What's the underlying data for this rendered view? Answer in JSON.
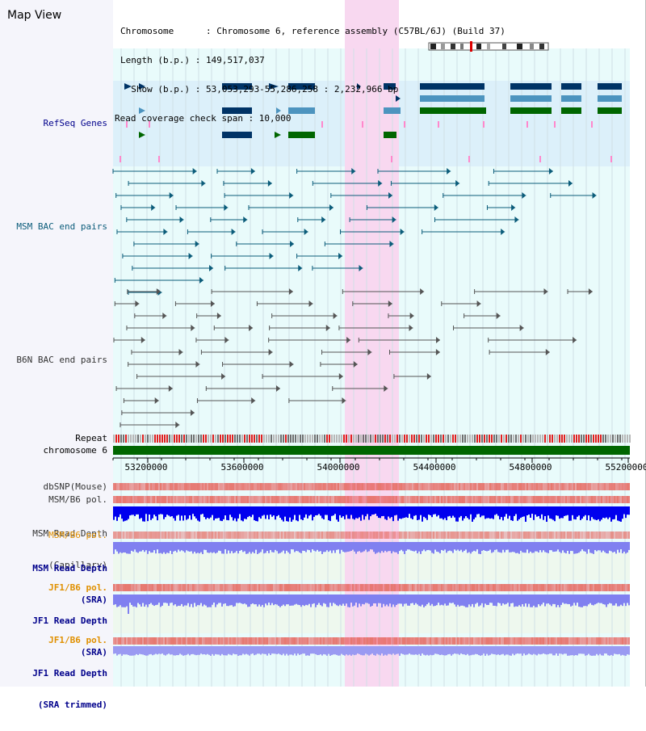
{
  "header": {
    "title": "Map View",
    "info_lines": [
      "Chromosome      : Chromosome 6, reference assembly (C57BL/6J) (Build 37)",
      "Length (b.p.) : 149,517,037",
      "  Show (b.p.) : 53,053,293-55,286,258 : 2,232,966 bp",
      "Read coverage check span : 10,000"
    ]
  },
  "tracks": {
    "refseq": "RefSeq Genes",
    "msm_bac": "MSM BAC end pairs",
    "b6n_bac": "B6N BAC end pairs",
    "repeat": "Repeat",
    "chromosome": "chromosome 6",
    "dbsnp": "dbSNP(Mouse)",
    "msm_b6_pol": "MSM/B6 pol.",
    "msm_depth_cap_1": "MSM Read Depth",
    "msm_depth_cap_2": "(Capillary)",
    "msm_b6_pol_2": "MSM/B6 pol.",
    "msm_depth_sra_1": "MSM Read Depth",
    "msm_depth_sra_2": "(SRA)",
    "jf1_b6_pol": "JF1/B6 pol.",
    "jf1_depth_1": "JF1 Read Depth",
    "jf1_depth_2": "(SRA)",
    "jf1_b6_pol_2": "JF1/B6 pol.",
    "jf1_depth_trim_1": "JF1 Read Depth",
    "jf1_depth_trim_2": "(SRA trimmed)"
  },
  "axis": {
    "ticks": [
      "53200000",
      "53600000",
      "54000000",
      "54400000",
      "54800000",
      "55200000"
    ]
  },
  "colors": {
    "refseq_bg": "#dcf0fa",
    "track_bg": "#e9fbfb",
    "highlight": "#f8d8f0",
    "gene_dark": "#003366",
    "gene_mid": "#4d94bf",
    "gene_green": "#006600",
    "msm_label": "#0b5c7a",
    "b6n_label": "#333333",
    "orange_label": "#e09000",
    "blue_label": "#00008b",
    "depth_blue": "#0000ee",
    "depth_light": "#8080f0",
    "chromosome_green": "#006600"
  }
}
